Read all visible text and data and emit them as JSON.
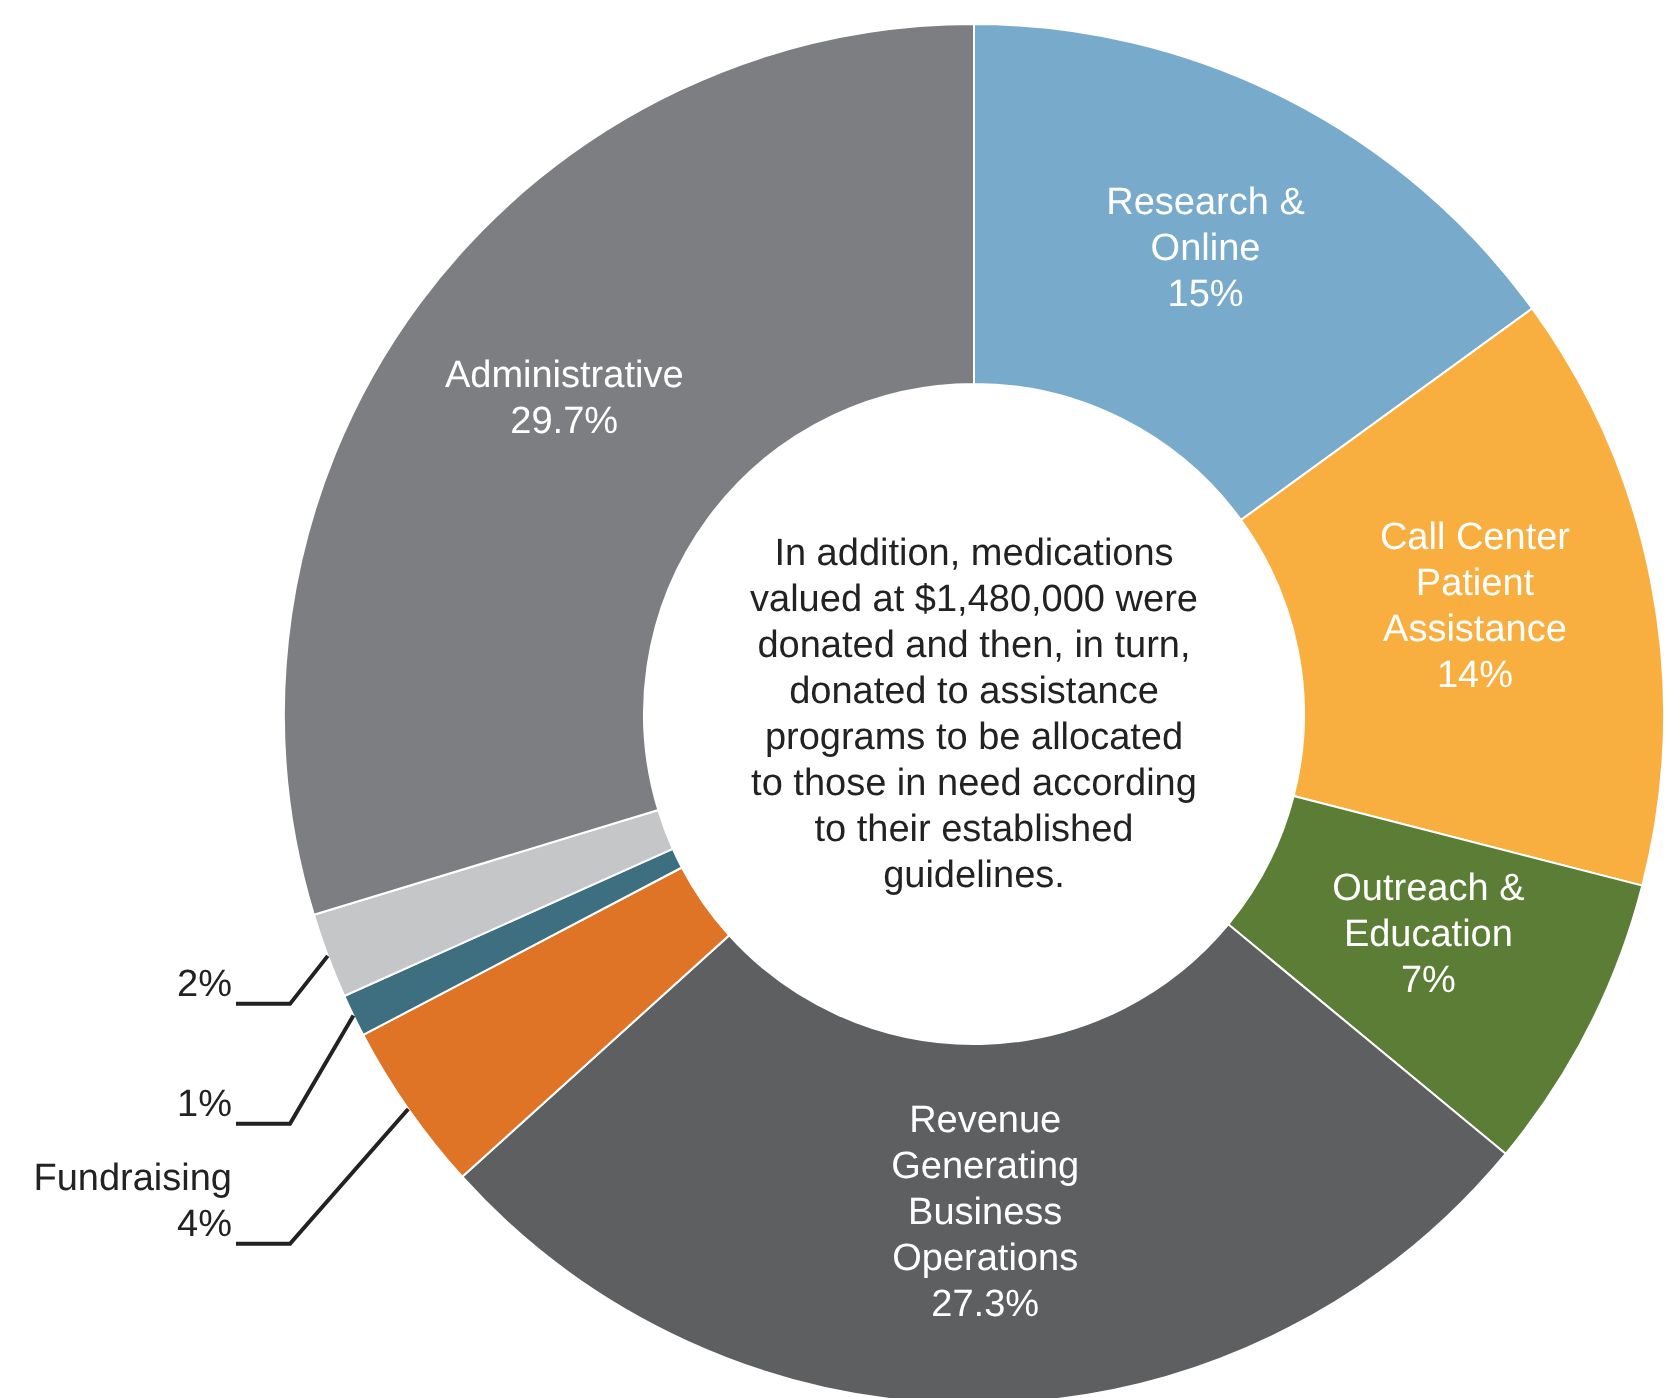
{
  "chart_data": {
    "type": "donut",
    "categories": [
      "Research & Online",
      "Call Center Patient Assistance",
      "Outreach & Education",
      "Revenue Generating Business Operations",
      "Fundraising",
      null,
      null,
      "Administrative"
    ],
    "values": [
      15,
      14,
      7,
      27.3,
      4,
      1,
      2,
      29.7
    ],
    "value_labels": [
      "15%",
      "14%",
      "7%",
      "27.3%",
      "4%",
      "1%",
      "2%",
      "29.7%"
    ],
    "colors": [
      "#78aacb",
      "#f9ae40",
      "#5b7d36",
      "#5e5f61",
      "#e07426",
      "#3d6f80",
      "#c4c6c8",
      "#7d7e81"
    ],
    "annotations": [
      "In addition, medications valued at $1,480,000 were donated and then, in turn, donated to assistance programs to be allocated to those in need according to their established guidelines."
    ]
  }
}
